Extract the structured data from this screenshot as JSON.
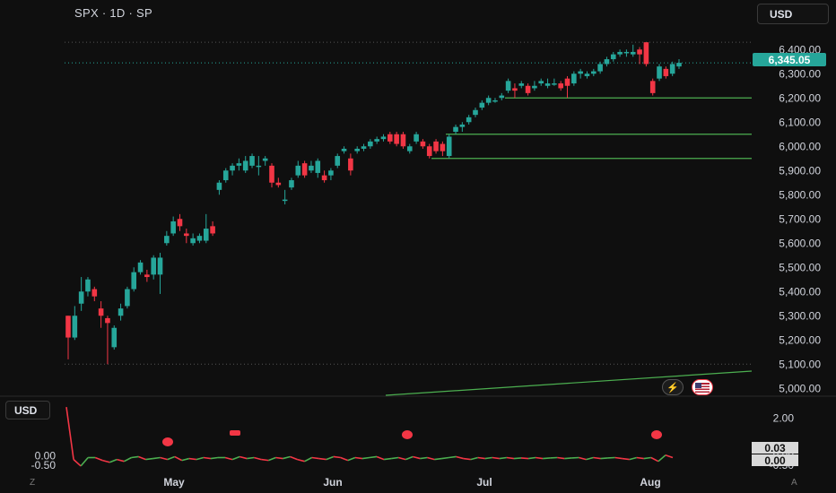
{
  "header": {
    "symbol_text": "SPX · 1D · SP",
    "currency_label": "USD"
  },
  "subpane": {
    "currency_label": "USD",
    "value_1": "0.03",
    "value_2": "0.00",
    "corner_left": "Z",
    "corner_right": "A"
  },
  "last_price_label": "6,345.05",
  "colors": {
    "up": "#26a69a",
    "down": "#f23645",
    "level": "#4caf50",
    "indicator_up": "#4caf50",
    "indicator_down": "#f23645",
    "background": "#0f0f0f"
  },
  "icons": [
    "lightning-icon",
    "flag-icon",
    "bear-marker-icon"
  ],
  "chart_data": [
    {
      "type": "candlestick",
      "title": "SPX · 1D · SP",
      "y_ticks": [
        "6,400.00",
        "6,300.00",
        "6,200.00",
        "6,100.00",
        "6,000.00",
        "5,900.00",
        "5,800.00",
        "5,700.00",
        "5,600.00",
        "5,500.00",
        "5,400.00",
        "5,300.00",
        "5,200.00",
        "5,100.00",
        "5,000.00"
      ],
      "x_ticks": [
        "May",
        "Jun",
        "Jul",
        "Aug"
      ],
      "ylim": [
        4975,
        6475
      ],
      "candles": [
        [
          5300,
          5210,
          5120,
          5300
        ],
        [
          5210,
          5300,
          5200,
          5340
        ],
        [
          5350,
          5400,
          5320,
          5460
        ],
        [
          5400,
          5450,
          5380,
          5460
        ],
        [
          5410,
          5380,
          5360,
          5420
        ],
        [
          5330,
          5300,
          5250,
          5360
        ],
        [
          5290,
          5270,
          5100,
          5300
        ],
        [
          5170,
          5250,
          5160,
          5260
        ],
        [
          5300,
          5330,
          5280,
          5350
        ],
        [
          5340,
          5410,
          5330,
          5420
        ],
        [
          5410,
          5480,
          5400,
          5500
        ],
        [
          5480,
          5520,
          5470,
          5530
        ],
        [
          5470,
          5460,
          5440,
          5490
        ],
        [
          5470,
          5540,
          5450,
          5550
        ],
        [
          5470,
          5540,
          5390,
          5560
        ],
        [
          5600,
          5630,
          5590,
          5650
        ],
        [
          5640,
          5690,
          5630,
          5710
        ],
        [
          5700,
          5670,
          5650,
          5720
        ],
        [
          5640,
          5630,
          5600,
          5660
        ],
        [
          5600,
          5620,
          5590,
          5640
        ],
        [
          5610,
          5630,
          5600,
          5640
        ],
        [
          5610,
          5660,
          5600,
          5720
        ],
        [
          5670,
          5640,
          5630,
          5690
        ],
        [
          5820,
          5850,
          5800,
          5860
        ],
        [
          5860,
          5900,
          5850,
          5910
        ],
        [
          5900,
          5920,
          5880,
          5930
        ],
        [
          5920,
          5930,
          5900,
          5950
        ],
        [
          5900,
          5940,
          5890,
          5960
        ],
        [
          5920,
          5960,
          5910,
          5970
        ],
        [
          5920,
          5920,
          5880,
          5960
        ],
        [
          5940,
          5950,
          5920,
          5960
        ],
        [
          5920,
          5850,
          5830,
          5930
        ],
        [
          5850,
          5840,
          5830,
          5870
        ],
        [
          5780,
          5780,
          5760,
          5820
        ],
        [
          5830,
          5860,
          5820,
          5870
        ],
        [
          5880,
          5920,
          5870,
          5940
        ],
        [
          5930,
          5880,
          5870,
          5940
        ],
        [
          5900,
          5920,
          5890,
          5940
        ],
        [
          5890,
          5940,
          5870,
          5950
        ],
        [
          5880,
          5860,
          5850,
          5900
        ],
        [
          5880,
          5900,
          5860,
          5910
        ],
        [
          5920,
          5960,
          5910,
          5970
        ],
        [
          5980,
          5990,
          5970,
          6000
        ],
        [
          5950,
          5900,
          5880,
          5970
        ],
        [
          5980,
          5990,
          5970,
          6000
        ],
        [
          5990,
          6000,
          5980,
          6010
        ],
        [
          6000,
          6020,
          5990,
          6030
        ],
        [
          6020,
          6030,
          6010,
          6040
        ],
        [
          6030,
          6040,
          6020,
          6050
        ],
        [
          6050,
          6020,
          6010,
          6060
        ],
        [
          6050,
          6010,
          6000,
          6060
        ],
        [
          6050,
          6000,
          5990,
          6060
        ],
        [
          5980,
          6000,
          5970,
          6010
        ],
        [
          6020,
          6050,
          6010,
          6060
        ],
        [
          6020,
          6000,
          5990,
          6030
        ],
        [
          6000,
          5960,
          5950,
          6010
        ],
        [
          6020,
          5980,
          5970,
          6030
        ],
        [
          6010,
          5980,
          5960,
          6020
        ],
        [
          5960,
          6040,
          5950,
          6050
        ],
        [
          6060,
          6080,
          6050,
          6090
        ],
        [
          6080,
          6090,
          6060,
          6100
        ],
        [
          6100,
          6120,
          6090,
          6130
        ],
        [
          6130,
          6150,
          6120,
          6160
        ],
        [
          6160,
          6180,
          6150,
          6190
        ],
        [
          6180,
          6200,
          6170,
          6210
        ],
        [
          6190,
          6190,
          6180,
          6200
        ],
        [
          6200,
          6210,
          6190,
          6220
        ],
        [
          6230,
          6270,
          6220,
          6280
        ],
        [
          6240,
          6230,
          6200,
          6260
        ],
        [
          6250,
          6260,
          6240,
          6270
        ],
        [
          6250,
          6220,
          6210,
          6260
        ],
        [
          6240,
          6250,
          6230,
          6270
        ],
        [
          6260,
          6270,
          6250,
          6280
        ],
        [
          6250,
          6260,
          6240,
          6280
        ],
        [
          6260,
          6260,
          6250,
          6280
        ],
        [
          6260,
          6240,
          6230,
          6270
        ],
        [
          6280,
          6250,
          6200,
          6290
        ],
        [
          6260,
          6300,
          6250,
          6310
        ],
        [
          6300,
          6310,
          6280,
          6320
        ],
        [
          6290,
          6300,
          6280,
          6310
        ],
        [
          6300,
          6310,
          6290,
          6320
        ],
        [
          6310,
          6340,
          6300,
          6350
        ],
        [
          6340,
          6360,
          6330,
          6370
        ],
        [
          6360,
          6380,
          6350,
          6390
        ],
        [
          6380,
          6390,
          6370,
          6400
        ],
        [
          6390,
          6390,
          6370,
          6400
        ],
        [
          6380,
          6390,
          6370,
          6420
        ],
        [
          6400,
          6380,
          6340,
          6410
        ],
        [
          6430,
          6340,
          6330,
          6430
        ],
        [
          6270,
          6220,
          6210,
          6280
        ],
        [
          6280,
          6330,
          6270,
          6340
        ],
        [
          6320,
          6290,
          6280,
          6330
        ],
        [
          6300,
          6340,
          6290,
          6350
        ],
        [
          6330,
          6345,
          6320,
          6360
        ]
      ],
      "levels": [
        6200,
        6050,
        5950
      ],
      "last_price": 6345.05
    },
    {
      "type": "line",
      "y_ticks": [
        "2.00",
        "0.00",
        "-0.50"
      ],
      "values": [
        2.6,
        -0.2,
        -0.55,
        -0.1,
        -0.1,
        -0.25,
        -0.35,
        -0.2,
        -0.3,
        -0.1,
        -0.05,
        -0.2,
        -0.15,
        -0.1,
        -0.2,
        -0.05,
        -0.25,
        -0.15,
        -0.2,
        -0.1,
        -0.15,
        -0.1,
        -0.1,
        -0.2,
        -0.05,
        -0.15,
        -0.1,
        -0.2,
        -0.25,
        -0.1,
        -0.15,
        -0.05,
        -0.2,
        -0.3,
        -0.1,
        -0.15,
        -0.2,
        -0.05,
        -0.1,
        -0.25,
        -0.1,
        -0.15,
        -0.1,
        -0.05,
        -0.2,
        -0.15,
        -0.1,
        -0.2,
        -0.05,
        -0.15,
        -0.1,
        -0.2,
        -0.15,
        -0.1,
        -0.05,
        -0.15,
        -0.2,
        -0.1,
        -0.15,
        -0.1,
        -0.15,
        -0.1,
        -0.15,
        -0.12,
        -0.15,
        -0.1,
        -0.15,
        -0.12,
        -0.1,
        -0.15,
        -0.12,
        -0.1,
        -0.2,
        -0.1,
        -0.15,
        -0.12,
        -0.1,
        -0.15,
        -0.2,
        -0.1,
        -0.15,
        -0.1,
        -0.3,
        0.03,
        -0.1
      ],
      "ylim": [
        -0.65,
        2.7
      ]
    }
  ]
}
